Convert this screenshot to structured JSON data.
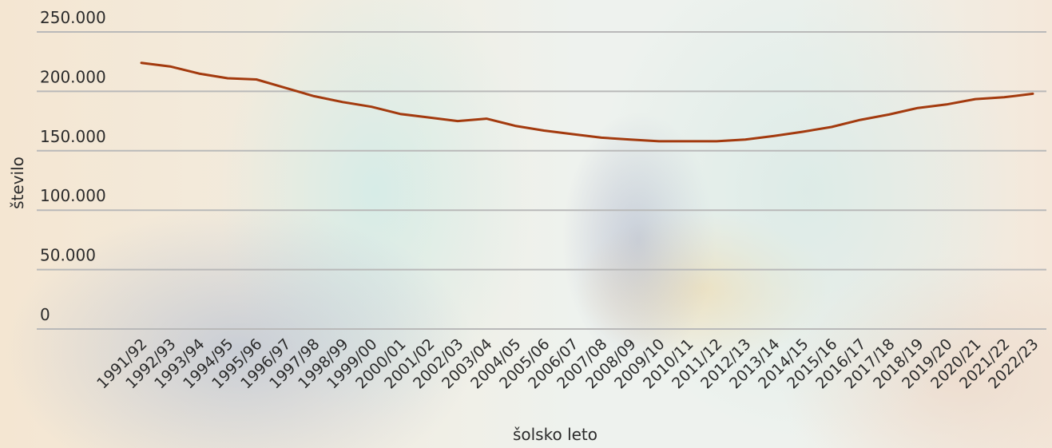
{
  "chart_data": {
    "type": "line",
    "title": "",
    "xlabel": "šolsko leto",
    "ylabel": "število",
    "ylim": [
      0,
      250000
    ],
    "yticks": [
      {
        "value": 0,
        "label": "0"
      },
      {
        "value": 50000,
        "label": "50.000"
      },
      {
        "value": 100000,
        "label": "100.000"
      },
      {
        "value": 150000,
        "label": "150.000"
      },
      {
        "value": 200000,
        "label": "200.000"
      },
      {
        "value": 250000,
        "label": "250.000"
      }
    ],
    "grid": true,
    "legend": "none",
    "line_color": "#a33a0e",
    "categories": [
      "1991/92",
      "1992/93",
      "1993/94",
      "1994/95",
      "1995/96",
      "1996/97",
      "1997/98",
      "1998/99",
      "1999/00",
      "2000/01",
      "2001/02",
      "2002/03",
      "2003/04",
      "2004/05",
      "2005/06",
      "2006/07",
      "2007/08",
      "2008/09",
      "2009/10",
      "2010/11",
      "2011/12",
      "2012/13",
      "2013/14",
      "2014/15",
      "2015/16",
      "2016/17",
      "2017/18",
      "2018/19",
      "2019/20",
      "2020/21",
      "2021/22",
      "2022/23"
    ],
    "series": [
      {
        "values": [
          224000,
          221000,
          215000,
          211000,
          210000,
          203000,
          196000,
          191000,
          187000,
          181000,
          178000,
          175000,
          177000,
          171000,
          167000,
          164000,
          161000,
          159500,
          158000,
          158000,
          158000,
          159500,
          162500,
          166000,
          170000,
          176000,
          180500,
          186000,
          189000,
          193500,
          195000,
          198000
        ]
      }
    ]
  }
}
